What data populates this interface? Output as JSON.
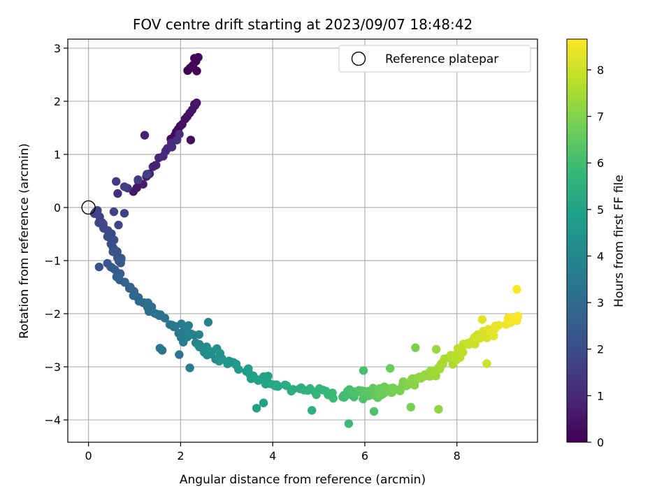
{
  "chart_data": {
    "type": "scatter",
    "title": "FOV centre drift starting at 2023/09/07 18:48:42",
    "xlabel": "Angular distance from reference (arcmin)",
    "ylabel": "Rotation from reference (arcmin)",
    "colorbar_label": "Hours from first FF file",
    "colormap": "viridis",
    "xlim": [
      -0.45,
      9.75
    ],
    "ylim": [
      -4.42,
      3.17
    ],
    "xticks": [
      0,
      2,
      4,
      6,
      8
    ],
    "yticks": [
      -4,
      -3,
      -2,
      -1,
      0,
      1,
      2,
      3
    ],
    "clim": [
      0,
      8.66
    ],
    "cticks": [
      0,
      1,
      2,
      3,
      4,
      5,
      6,
      7,
      8
    ],
    "grid": true,
    "legend": {
      "placement": "top-right",
      "entries": [
        "Reference platepar"
      ]
    },
    "reference_point": {
      "x": 0,
      "y": 0
    },
    "curve_segments": [
      {
        "hours": [
          0.0,
          0.15
        ],
        "x_range": [
          2.15,
          2.38
        ],
        "y_range": [
          2.55,
          2.82
        ],
        "n": 5,
        "spread": 0.05
      },
      {
        "hours": [
          0.15,
          0.5
        ],
        "x_range": [
          1.8,
          2.35
        ],
        "y_range": [
          1.3,
          1.95
        ],
        "n": 12,
        "spread": 0.05
      },
      {
        "hours": [
          0.5,
          1.2
        ],
        "x_range": [
          1.0,
          1.95
        ],
        "y_range": [
          0.3,
          1.35
        ],
        "n": 18,
        "spread": 0.1
      },
      {
        "hours": [
          1.2,
          1.6
        ],
        "x_range": [
          0.65,
          1.25
        ],
        "y_range": [
          0.25,
          0.6
        ],
        "n": 4,
        "spread": 0.08
      },
      {
        "hours": [
          1.6,
          2.4
        ],
        "x_range": [
          0.15,
          0.75
        ],
        "y_range": [
          -0.08,
          -1.05
        ],
        "n": 30,
        "spread": 0.1
      },
      {
        "hours": [
          2.4,
          3.0
        ],
        "x_range": [
          0.4,
          1.35
        ],
        "y_range": [
          -1.05,
          -1.95
        ],
        "n": 20,
        "spread": 0.1
      },
      {
        "hours": [
          3.0,
          3.6
        ],
        "x_range": [
          1.2,
          2.1
        ],
        "y_range": [
          -1.8,
          -2.5
        ],
        "n": 18,
        "spread": 0.14
      },
      {
        "hours": [
          3.6,
          4.3
        ],
        "x_range": [
          2.0,
          2.7
        ],
        "y_range": [
          -2.2,
          -2.8
        ],
        "n": 20,
        "spread": 0.14
      },
      {
        "hours": [
          4.3,
          5.2
        ],
        "x_range": [
          2.7,
          4.1
        ],
        "y_range": [
          -2.7,
          -3.4
        ],
        "n": 30,
        "spread": 0.13
      },
      {
        "hours": [
          5.2,
          6.0
        ],
        "x_range": [
          4.1,
          5.6
        ],
        "y_range": [
          -3.35,
          -3.55
        ],
        "n": 22,
        "spread": 0.12
      },
      {
        "hours": [
          6.0,
          6.8
        ],
        "x_range": [
          5.6,
          6.6
        ],
        "y_range": [
          -3.5,
          -3.45
        ],
        "n": 42,
        "spread": 0.14
      },
      {
        "hours": [
          6.8,
          7.4
        ],
        "x_range": [
          6.6,
          7.6
        ],
        "y_range": [
          -3.45,
          -3.05
        ],
        "n": 35,
        "spread": 0.14
      },
      {
        "hours": [
          7.4,
          8.0
        ],
        "x_range": [
          7.6,
          8.35
        ],
        "y_range": [
          -3.05,
          -2.5
        ],
        "n": 30,
        "spread": 0.14
      },
      {
        "hours": [
          8.0,
          8.66
        ],
        "x_range": [
          8.35,
          9.3
        ],
        "y_range": [
          -2.5,
          -2.05
        ],
        "n": 18,
        "spread": 0.12
      }
    ],
    "extra_points": [
      {
        "x": 2.2,
        "y": 2.62,
        "h": 0.1
      },
      {
        "x": 2.35,
        "y": 2.57,
        "h": 0.1
      },
      {
        "x": 2.3,
        "y": 2.81,
        "h": 0.02
      },
      {
        "x": 2.3,
        "y": 1.94,
        "h": 0.15
      },
      {
        "x": 2.22,
        "y": 1.27,
        "h": 0.35
      },
      {
        "x": 1.22,
        "y": 1.36,
        "h": 0.8
      },
      {
        "x": 0.6,
        "y": 0.49,
        "h": 1.5
      },
      {
        "x": 0.78,
        "y": 0.39,
        "h": 1.55
      },
      {
        "x": 0.55,
        "y": -0.08,
        "h": 1.75
      },
      {
        "x": 0.78,
        "y": -0.11,
        "h": 1.7
      },
      {
        "x": 0.65,
        "y": -0.33,
        "h": 1.8
      },
      {
        "x": 0.23,
        "y": -1.12,
        "h": 2.25
      },
      {
        "x": 1.55,
        "y": -2.65,
        "h": 3.3
      },
      {
        "x": 1.6,
        "y": -2.69,
        "h": 3.3
      },
      {
        "x": 1.97,
        "y": -2.77,
        "h": 3.4
      },
      {
        "x": 2.2,
        "y": -3.02,
        "h": 3.6
      },
      {
        "x": 2.6,
        "y": -2.16,
        "h": 3.9
      },
      {
        "x": 3.65,
        "y": -3.78,
        "h": 4.9
      },
      {
        "x": 3.8,
        "y": -3.68,
        "h": 5.0
      },
      {
        "x": 4.85,
        "y": -3.82,
        "h": 5.5
      },
      {
        "x": 5.65,
        "y": -4.07,
        "h": 5.9
      },
      {
        "x": 5.97,
        "y": -3.07,
        "h": 6.1
      },
      {
        "x": 6.2,
        "y": -3.84,
        "h": 6.2
      },
      {
        "x": 6.55,
        "y": -3.03,
        "h": 6.6
      },
      {
        "x": 7.0,
        "y": -3.76,
        "h": 6.85
      },
      {
        "x": 7.1,
        "y": -2.64,
        "h": 6.9
      },
      {
        "x": 7.6,
        "y": -3.8,
        "h": 7.2
      },
      {
        "x": 7.55,
        "y": -2.67,
        "h": 7.3
      },
      {
        "x": 8.65,
        "y": -2.94,
        "h": 8.0
      },
      {
        "x": 8.55,
        "y": -2.11,
        "h": 8.3
      },
      {
        "x": 9.15,
        "y": -2.07,
        "h": 8.5
      },
      {
        "x": 9.3,
        "y": -2.13,
        "h": 8.55
      },
      {
        "x": 9.3,
        "y": -1.54,
        "h": 8.66
      },
      {
        "x": 8.8,
        "y": -2.42,
        "h": 8.3
      },
      {
        "x": 8.75,
        "y": -2.36,
        "h": 8.2
      }
    ]
  }
}
